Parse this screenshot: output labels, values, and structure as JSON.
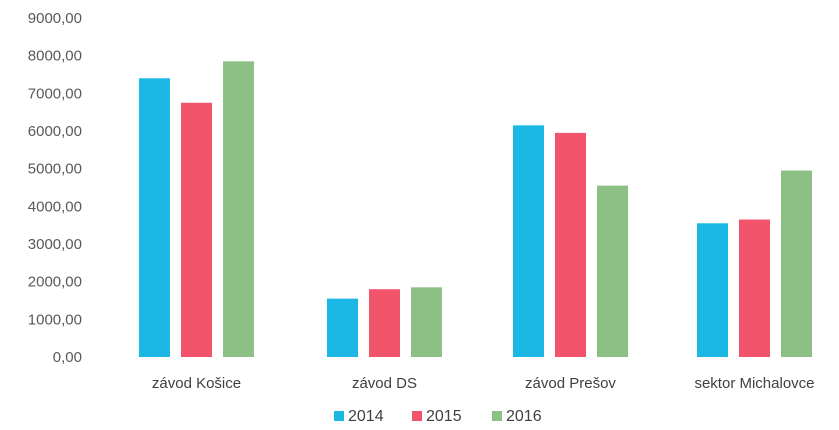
{
  "chart_data": {
    "type": "bar",
    "title": "",
    "xlabel": "",
    "ylabel": "",
    "ylim": [
      0,
      9000
    ],
    "yticks": [
      0,
      1000,
      2000,
      3000,
      4000,
      5000,
      6000,
      7000,
      8000,
      9000
    ],
    "ytick_labels": [
      "0,00",
      "1000,00",
      "2000,00",
      "3000,00",
      "4000,00",
      "5000,00",
      "6000,00",
      "7000,00",
      "8000,00",
      "9000,00"
    ],
    "categories": [
      "závod Košice",
      "závod DS",
      "závod Prešov",
      "sektor Michalovce"
    ],
    "series": [
      {
        "name": "2014",
        "color": "#1BB8E6",
        "values": [
          7400,
          1550,
          6150,
          3550
        ]
      },
      {
        "name": "2015",
        "color": "#F2546B",
        "values": [
          6750,
          1800,
          5950,
          3650
        ]
      },
      {
        "name": "2016",
        "color": "#8CC084",
        "values": [
          7850,
          1850,
          4550,
          4950
        ]
      }
    ],
    "grid": false,
    "legend_position": "bottom"
  }
}
